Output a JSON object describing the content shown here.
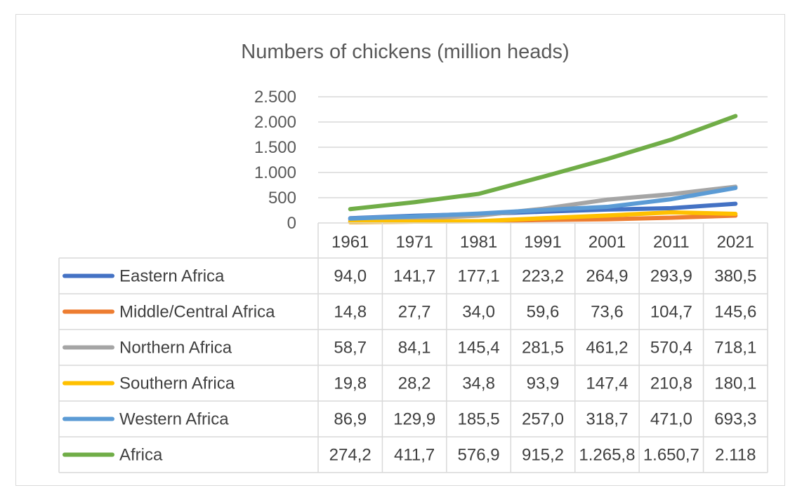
{
  "chart_data": {
    "type": "line",
    "title": "Numbers of chickens (million heads)",
    "categories": [
      "1961",
      "1971",
      "1981",
      "1991",
      "2001",
      "2011",
      "2021"
    ],
    "ylim": [
      0,
      2500
    ],
    "yticks": [
      0,
      500,
      1000,
      1500,
      2000,
      2500
    ],
    "ytick_labels": [
      "0",
      "500",
      "1.000",
      "1.500",
      "2.000",
      "2.500"
    ],
    "grid": true,
    "legend": "data-table",
    "series": [
      {
        "name": "Eastern Africa",
        "color": "#4472c4",
        "values": [
          94.0,
          141.7,
          177.1,
          223.2,
          264.9,
          293.9,
          380.5
        ],
        "labels": [
          "94,0",
          "141,7",
          "177,1",
          "223,2",
          "264,9",
          "293,9",
          "380,5"
        ]
      },
      {
        "name": "Middle/Central Africa",
        "color": "#ed7d31",
        "values": [
          14.8,
          27.7,
          34.0,
          59.6,
          73.6,
          104.7,
          145.6
        ],
        "labels": [
          "14,8",
          "27,7",
          "34,0",
          "59,6",
          "73,6",
          "104,7",
          "145,6"
        ]
      },
      {
        "name": "Northern Africa",
        "color": "#a5a5a5",
        "values": [
          58.7,
          84.1,
          145.4,
          281.5,
          461.2,
          570.4,
          718.1
        ],
        "labels": [
          "58,7",
          "84,1",
          "145,4",
          "281,5",
          "461,2",
          "570,4",
          "718,1"
        ]
      },
      {
        "name": "Southern Africa",
        "color": "#ffc000",
        "values": [
          19.8,
          28.2,
          34.8,
          93.9,
          147.4,
          210.8,
          180.1
        ],
        "labels": [
          "19,8",
          "28,2",
          "34,8",
          "93,9",
          "147,4",
          "210,8",
          "180,1"
        ]
      },
      {
        "name": "Western Africa",
        "color": "#5b9bd5",
        "values": [
          86.9,
          129.9,
          185.5,
          257.0,
          318.7,
          471.0,
          693.3
        ],
        "labels": [
          "86,9",
          "129,9",
          "185,5",
          "257,0",
          "318,7",
          "471,0",
          "693,3"
        ]
      },
      {
        "name": "Africa",
        "color": "#70ad47",
        "values": [
          274.2,
          411.7,
          576.9,
          915.2,
          1265.8,
          1650.7,
          2118
        ],
        "labels": [
          "274,2",
          "411,7",
          "576,9",
          "915,2",
          "1.265,8",
          "1.650,7",
          "2.118"
        ]
      }
    ]
  }
}
